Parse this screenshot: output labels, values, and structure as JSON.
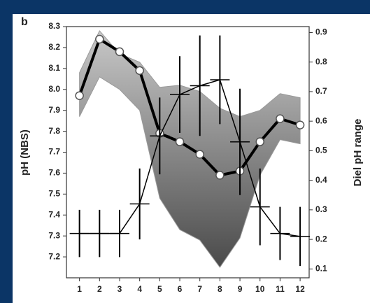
{
  "chart_data": {
    "type": "line",
    "panel_label": "b",
    "y_label": "pH (NBS)",
    "y2_label": "Diel pH range",
    "x": [
      1,
      2,
      3,
      4,
      5,
      6,
      7,
      8,
      9,
      10,
      11,
      12
    ],
    "xlim": [
      0.35,
      12.45
    ],
    "xticks": [
      1,
      2,
      3,
      4,
      5,
      6,
      7,
      8,
      9,
      10,
      11,
      12
    ],
    "ylim": [
      7.1,
      8.3
    ],
    "yticks": [
      7.2,
      7.3,
      7.4,
      7.5,
      7.6,
      7.7,
      7.8,
      7.9,
      {
        "value": 8,
        "label": "8.0"
      },
      8.1,
      8.2,
      8.3
    ],
    "y2lim": [
      0.07,
      0.92
    ],
    "y2ticks": [
      0.1,
      0.2,
      0.3,
      0.4,
      0.5,
      0.6,
      0.7,
      0.8,
      0.9
    ],
    "band": {
      "upper": [
        8.08,
        8.28,
        8.17,
        8.13,
        8.01,
        8.02,
        7.99,
        7.91,
        7.87,
        7.9,
        7.98,
        7.96
      ],
      "lower": [
        7.87,
        8.06,
        8.0,
        7.9,
        7.48,
        7.33,
        7.28,
        7.15,
        7.29,
        7.59,
        7.76,
        7.74
      ]
    },
    "series": [
      {
        "color": "#000000",
        "values": [
          7.97,
          8.24,
          8.18,
          8.09,
          7.79,
          7.75,
          7.69,
          7.59,
          7.61,
          7.75,
          7.86,
          7.83
        ]
      },
      {
        "color": "#000000",
        "axis": "y2",
        "values": [
          0.22,
          0.22,
          0.22,
          0.32,
          0.55,
          0.69,
          0.72,
          0.74,
          0.53,
          0.31,
          0.22,
          0.21
        ],
        "errors": [
          0.08,
          0.08,
          0.08,
          0.12,
          0.13,
          0.13,
          0.17,
          0.15,
          0.18,
          0.13,
          0.09,
          0.1
        ]
      }
    ]
  }
}
